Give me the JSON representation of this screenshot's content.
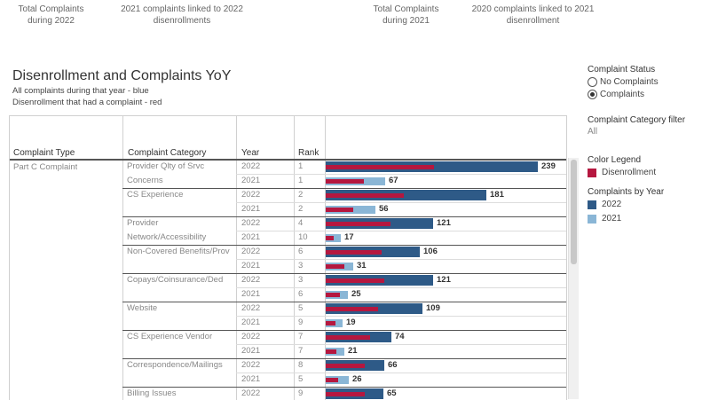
{
  "kpis": [
    {
      "label": "Total Complaints during 2022"
    },
    {
      "label": "2021 complaints linked to 2022 disenrollments"
    },
    {
      "label": "Total Complaints during 2021"
    },
    {
      "label": "2020 complaints linked to 2021 disenrollment"
    }
  ],
  "title": "Disenrollment and Complaints YoY",
  "subtitle1": "All complaints during that year - blue",
  "subtitle2": "Disenrollment that had a complaint - red",
  "headers": {
    "type": "Complaint Type",
    "category": "Complaint Category",
    "year": "Year",
    "rank": "Rank"
  },
  "complaint_type": "Part C Complaint",
  "rows": [
    {
      "category": "Provider Qlty of Srvc Concerns",
      "year": "2022",
      "rank": "1",
      "total": 239,
      "disenroll": 122
    },
    {
      "category": "",
      "year": "2021",
      "rank": "1",
      "total": 67,
      "disenroll": 43
    },
    {
      "category": "CS Experience",
      "year": "2022",
      "rank": "2",
      "total": 181,
      "disenroll": 88
    },
    {
      "category": "",
      "year": "2021",
      "rank": "2",
      "total": 56,
      "disenroll": 31
    },
    {
      "category": "Provider Network/Accessibility",
      "year": "2022",
      "rank": "4",
      "total": 121,
      "disenroll": 73
    },
    {
      "category": "",
      "year": "2021",
      "rank": "10",
      "total": 17,
      "disenroll": 9
    },
    {
      "category": "Non-Covered Benefits/Prov",
      "year": "2022",
      "rank": "6",
      "total": 106,
      "disenroll": 63
    },
    {
      "category": "",
      "year": "2021",
      "rank": "3",
      "total": 31,
      "disenroll": 21
    },
    {
      "category": "Copays/Coinsurance/Ded",
      "year": "2022",
      "rank": "3",
      "total": 121,
      "disenroll": 66
    },
    {
      "category": "",
      "year": "2021",
      "rank": "6",
      "total": 25,
      "disenroll": 16
    },
    {
      "category": "Website",
      "year": "2022",
      "rank": "5",
      "total": 109,
      "disenroll": 59
    },
    {
      "category": "",
      "year": "2021",
      "rank": "9",
      "total": 19,
      "disenroll": 11
    },
    {
      "category": "CS Experience Vendor",
      "year": "2022",
      "rank": "7",
      "total": 74,
      "disenroll": 50
    },
    {
      "category": "",
      "year": "2021",
      "rank": "7",
      "total": 21,
      "disenroll": 12
    },
    {
      "category": "Correspondence/Mailings",
      "year": "2022",
      "rank": "8",
      "total": 66,
      "disenroll": 44
    },
    {
      "category": "",
      "year": "2021",
      "rank": "5",
      "total": 26,
      "disenroll": 14
    },
    {
      "category": "Billing Issues",
      "year": "2022",
      "rank": "9",
      "total": 65,
      "disenroll": 44
    }
  ],
  "axis_max": 250,
  "colors": {
    "bar_2022": "#2e5a87",
    "bar_2021": "#8ab6d6",
    "disenroll": "#b5173f"
  },
  "complaint_status": {
    "title": "Complaint Status",
    "options": [
      "No Complaints",
      "Complaints"
    ],
    "selected": "Complaints"
  },
  "category_filter": {
    "title": "Complaint Category filter",
    "value": "All"
  },
  "color_legend": {
    "title": "Color Legend",
    "item": "Disenrollment"
  },
  "by_year": {
    "title": "Complaints by Year",
    "items": [
      "2022",
      "2021"
    ]
  }
}
